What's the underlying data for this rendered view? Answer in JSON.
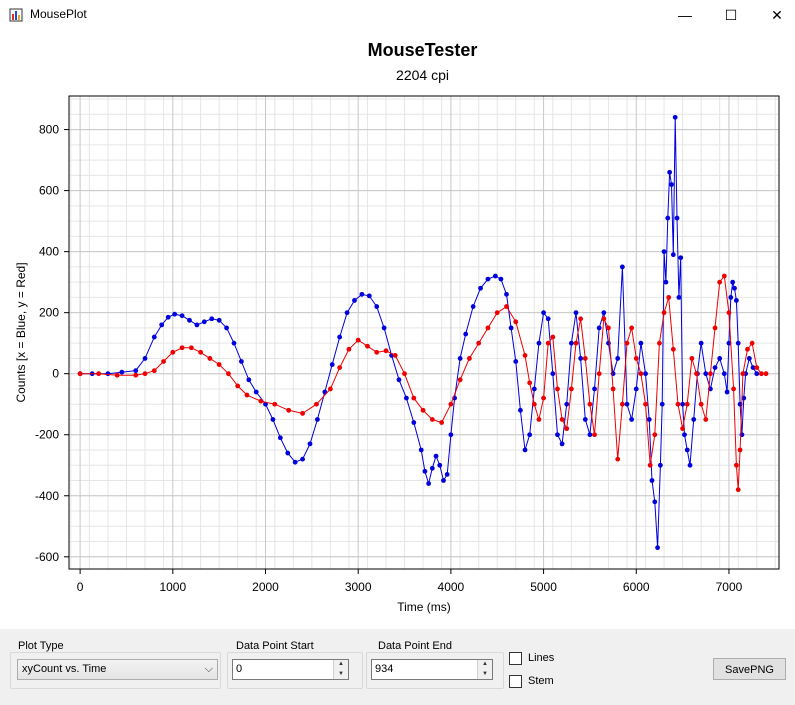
{
  "window": {
    "title": "MousePlot",
    "minimize": "—",
    "maximize": "☐",
    "close": "✕"
  },
  "chart_data": {
    "type": "scatter",
    "title": "MouseTester",
    "subtitle": "2204 cpi",
    "xlabel": "Time (ms)",
    "ylabel": "Counts [x = Blue, y = Red]",
    "xlim": [
      -120,
      7540
    ],
    "ylim": [
      -640,
      910
    ],
    "xticks": [
      0,
      1000,
      2000,
      3000,
      4000,
      5000,
      6000,
      7000
    ],
    "yticks": [
      -600,
      -400,
      -200,
      0,
      200,
      400,
      600,
      800
    ],
    "grid": true,
    "legend": "none",
    "series": [
      {
        "color": "#0000dd",
        "lines": true,
        "x": [
          0,
          130,
          300,
          450,
          600,
          700,
          800,
          880,
          950,
          1020,
          1100,
          1180,
          1260,
          1340,
          1420,
          1500,
          1580,
          1660,
          1740,
          1820,
          1900,
          2000,
          2080,
          2160,
          2240,
          2320,
          2400,
          2480,
          2560,
          2640,
          2720,
          2800,
          2880,
          2960,
          3040,
          3120,
          3200,
          3280,
          3360,
          3440,
          3520,
          3600,
          3680,
          3720,
          3760,
          3800,
          3840,
          3880,
          3920,
          3960,
          4000,
          4040,
          4100,
          4160,
          4240,
          4320,
          4400,
          4480,
          4540,
          4600,
          4650,
          4700,
          4750,
          4800,
          4850,
          4900,
          4950,
          5000,
          5050,
          5100,
          5150,
          5200,
          5250,
          5300,
          5350,
          5400,
          5450,
          5500,
          5550,
          5600,
          5650,
          5700,
          5750,
          5800,
          5850,
          5900,
          5950,
          6000,
          6050,
          6100,
          6140,
          6170,
          6200,
          6230,
          6260,
          6280,
          6300,
          6320,
          6340,
          6360,
          6380,
          6400,
          6420,
          6440,
          6460,
          6480,
          6500,
          6520,
          6550,
          6580,
          6620,
          6660,
          6700,
          6750,
          6800,
          6850,
          6900,
          6950,
          6980,
          7000,
          7020,
          7040,
          7060,
          7080,
          7100,
          7120,
          7140,
          7160,
          7180,
          7220,
          7260,
          7300
        ],
        "y": [
          0,
          0,
          0,
          5,
          10,
          50,
          120,
          160,
          185,
          195,
          190,
          175,
          160,
          170,
          180,
          175,
          150,
          100,
          40,
          -20,
          -60,
          -100,
          -150,
          -210,
          -260,
          -290,
          -280,
          -230,
          -150,
          -60,
          30,
          120,
          200,
          240,
          260,
          255,
          220,
          150,
          60,
          -20,
          -80,
          -160,
          -250,
          -320,
          -360,
          -310,
          -270,
          -300,
          -350,
          -330,
          -200,
          -80,
          50,
          130,
          220,
          280,
          310,
          320,
          310,
          260,
          150,
          40,
          -120,
          -250,
          -200,
          -50,
          100,
          200,
          180,
          0,
          -200,
          -230,
          -100,
          100,
          200,
          50,
          -150,
          -200,
          -50,
          150,
          200,
          100,
          0,
          50,
          350,
          -100,
          -150,
          -50,
          100,
          0,
          -150,
          -350,
          -420,
          -570,
          -300,
          -100,
          400,
          300,
          510,
          660,
          620,
          390,
          840,
          510,
          250,
          380,
          -100,
          -200,
          -250,
          -300,
          -150,
          0,
          100,
          0,
          -50,
          20,
          50,
          0,
          -60,
          100,
          250,
          300,
          280,
          240,
          100,
          -100,
          -200,
          -80,
          0,
          50,
          20,
          0
        ]
      },
      {
        "color": "#ee0000",
        "lines": true,
        "x": [
          0,
          200,
          400,
          600,
          700,
          800,
          900,
          1000,
          1100,
          1200,
          1300,
          1400,
          1500,
          1600,
          1700,
          1800,
          1950,
          2100,
          2250,
          2400,
          2550,
          2700,
          2800,
          2900,
          3000,
          3100,
          3200,
          3300,
          3400,
          3500,
          3600,
          3700,
          3800,
          3900,
          4000,
          4100,
          4200,
          4300,
          4400,
          4500,
          4600,
          4700,
          4800,
          4850,
          4900,
          4950,
          5000,
          5050,
          5100,
          5150,
          5200,
          5250,
          5300,
          5350,
          5400,
          5450,
          5500,
          5550,
          5600,
          5650,
          5700,
          5750,
          5800,
          5850,
          5900,
          5950,
          6000,
          6050,
          6100,
          6150,
          6200,
          6250,
          6300,
          6350,
          6400,
          6450,
          6500,
          6550,
          6600,
          6650,
          6700,
          6750,
          6800,
          6850,
          6900,
          6950,
          7000,
          7050,
          7080,
          7100,
          7120,
          7150,
          7200,
          7250,
          7300,
          7350,
          7400
        ],
        "y": [
          0,
          0,
          -5,
          -5,
          0,
          10,
          40,
          70,
          85,
          85,
          70,
          50,
          30,
          0,
          -40,
          -70,
          -90,
          -100,
          -120,
          -130,
          -100,
          -50,
          20,
          80,
          110,
          90,
          70,
          75,
          60,
          0,
          -80,
          -120,
          -150,
          -160,
          -100,
          -20,
          50,
          100,
          150,
          200,
          220,
          170,
          60,
          -30,
          -100,
          -150,
          -80,
          100,
          120,
          -50,
          -150,
          -180,
          -50,
          100,
          180,
          50,
          -100,
          -200,
          0,
          180,
          150,
          -50,
          -280,
          -100,
          100,
          150,
          50,
          0,
          -100,
          -300,
          -200,
          100,
          200,
          250,
          80,
          -100,
          -180,
          -100,
          50,
          0,
          -100,
          -150,
          0,
          150,
          300,
          320,
          200,
          -50,
          -300,
          -380,
          -250,
          0,
          80,
          100,
          20,
          0,
          0
        ]
      }
    ]
  },
  "controls": {
    "plot_type_label": "Plot Type",
    "plot_type_value": "xyCount vs. Time",
    "start_label": "Data Point Start",
    "start_value": "0",
    "end_label": "Data Point End",
    "end_value": "934",
    "lines_label": "Lines",
    "stem_label": "Stem",
    "save_label": "SavePNG"
  }
}
